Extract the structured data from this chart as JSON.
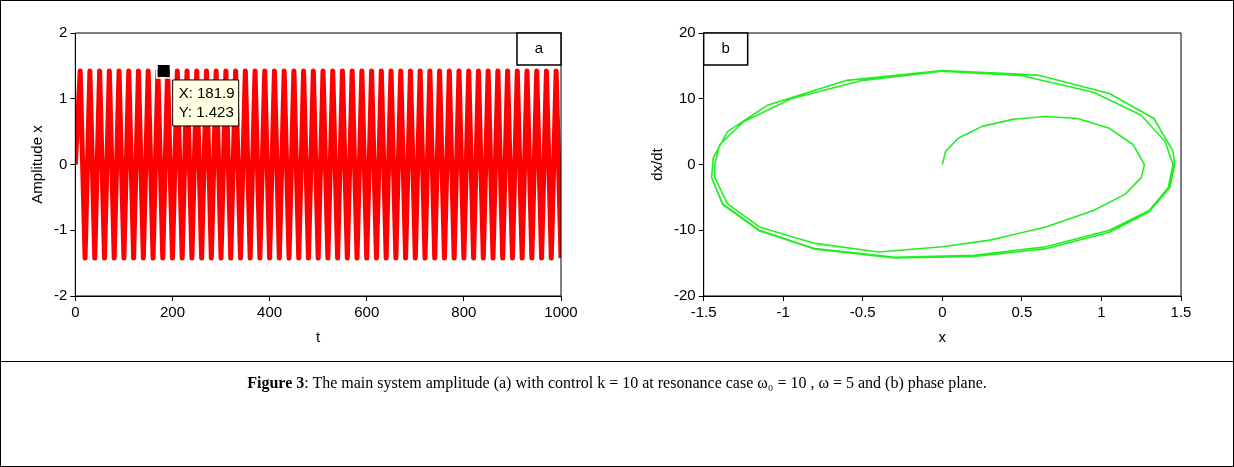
{
  "chart_data": [
    {
      "type": "line",
      "xlabel": "t",
      "ylabel": "Amplitude x",
      "xlim": [
        0,
        1000
      ],
      "ylim": [
        -2,
        2
      ],
      "xticks": [
        0,
        200,
        400,
        600,
        800,
        1000
      ],
      "yticks": [
        -2,
        -1,
        0,
        1,
        2
      ],
      "grid": false,
      "legend": false,
      "annotations": [
        "a",
        {
          "text": "X: 181.9\nY: 1.423",
          "x": 181.9,
          "y": 1.423
        }
      ],
      "series": [
        {
          "color": "#ff0000",
          "x": [
            0,
            10,
            20,
            30,
            40,
            50,
            60,
            70,
            80,
            90,
            100,
            110,
            120,
            130,
            140,
            150,
            160,
            170,
            180,
            190,
            200,
            210,
            220,
            230,
            240,
            250,
            260,
            270,
            280,
            290,
            300,
            310,
            320,
            330,
            340,
            350,
            360,
            370,
            380,
            390,
            400,
            410,
            420,
            430,
            440,
            450,
            460,
            470,
            480,
            490,
            500,
            510,
            520,
            530,
            540,
            550,
            560,
            570,
            580,
            590,
            600,
            610,
            620,
            630,
            640,
            650,
            660,
            670,
            680,
            690,
            700,
            710,
            720,
            730,
            740,
            750,
            760,
            770,
            780,
            790,
            800,
            810,
            820,
            830,
            840,
            850,
            860,
            870,
            880,
            890,
            900,
            910,
            920,
            930,
            940,
            950,
            960,
            970,
            980,
            990,
            1000
          ],
          "values": [
            0,
            1.423,
            -1.423,
            1.423,
            -1.423,
            1.423,
            -1.423,
            1.423,
            -1.423,
            1.423,
            -1.423,
            1.423,
            -1.423,
            1.423,
            -1.423,
            1.423,
            -1.423,
            1.423,
            -1.423,
            1.423,
            -1.423,
            1.423,
            -1.423,
            1.423,
            -1.423,
            1.423,
            -1.423,
            1.423,
            -1.423,
            1.423,
            -1.423,
            1.423,
            -1.423,
            1.423,
            -1.423,
            1.423,
            -1.423,
            1.423,
            -1.423,
            1.423,
            -1.423,
            1.423,
            -1.423,
            1.423,
            -1.423,
            1.423,
            -1.423,
            1.423,
            -1.423,
            1.423,
            -1.423,
            1.423,
            -1.423,
            1.423,
            -1.423,
            1.423,
            -1.423,
            1.423,
            -1.423,
            1.423,
            -1.423,
            1.423,
            -1.423,
            1.423,
            -1.423,
            1.423,
            -1.423,
            1.423,
            -1.423,
            1.423,
            -1.423,
            1.423,
            -1.423,
            1.423,
            -1.423,
            1.423,
            -1.423,
            1.423,
            -1.423,
            1.423,
            -1.423,
            1.423,
            -1.423,
            1.423,
            -1.423,
            1.423,
            -1.423,
            1.423,
            -1.423,
            1.423,
            -1.423,
            1.423,
            -1.423,
            1.423,
            -1.423,
            1.423,
            -1.423,
            1.423,
            -1.423,
            1.423,
            -1.423
          ]
        }
      ]
    },
    {
      "type": "line",
      "xlabel": "x",
      "ylabel": "dx/dt",
      "xlim": [
        -1.5,
        1.5
      ],
      "ylim": [
        -20,
        20
      ],
      "xticks": [
        -1.5,
        -1,
        -0.5,
        0,
        0.5,
        1,
        1.5
      ],
      "yticks": [
        -20,
        -10,
        0,
        10,
        20
      ],
      "grid": false,
      "legend": false,
      "annotations": [
        "b"
      ],
      "series": [
        {
          "color": "#22ee22",
          "x": [
            0,
            0.02,
            0.1,
            0.25,
            0.45,
            0.65,
            0.85,
            1.05,
            1.2,
            1.27,
            1.25,
            1.15,
            0.95,
            0.65,
            0.3,
            0,
            -0.4,
            -0.8,
            -1.15,
            -1.35,
            -1.43,
            -1.43,
            -1.4,
            -1.25,
            -0.95,
            -0.5,
            0,
            0.5,
            0.95,
            1.25,
            1.4,
            1.45,
            1.42,
            1.3,
            1.05,
            0.65,
            0.2,
            -0.3,
            -0.8,
            -1.15,
            -1.38,
            -1.45,
            -1.44,
            -1.35,
            -1.1,
            -0.6,
            0,
            0.6,
            1.05,
            1.33,
            1.45,
            1.46,
            1.43,
            1.3,
            1.05,
            0.65,
            0.2,
            -0.3,
            -0.8,
            -1.15,
            -1.38,
            -1.45
          ],
          "values": [
            0,
            2,
            4,
            5.8,
            6.9,
            7.3,
            7,
            5.5,
            3,
            0,
            -2,
            -4.5,
            -7,
            -9.5,
            -11.5,
            -12.5,
            -13.3,
            -12,
            -9.5,
            -6,
            -2,
            0,
            3,
            6.5,
            10,
            12.8,
            14.2,
            13.5,
            11,
            7.5,
            3.5,
            0,
            -3.5,
            -7,
            -10,
            -12.5,
            -13.8,
            -14.1,
            -12.8,
            -10,
            -6,
            -2,
            1,
            5,
            9,
            12.8,
            14.3,
            13.6,
            10.8,
            7,
            2,
            0,
            -3.5,
            -7.2,
            -10.3,
            -12.8,
            -14,
            -14.2,
            -12.9,
            -10.1,
            -6.1,
            -2
          ]
        }
      ]
    },
    {
      "type": "other",
      "annotations": [
        "Figure 3",
        ": The main system amplitude (a) with control  k  = 10  at resonance case ω₀ = 10 , ω = 5  and (b) phase plane."
      ]
    }
  ]
}
